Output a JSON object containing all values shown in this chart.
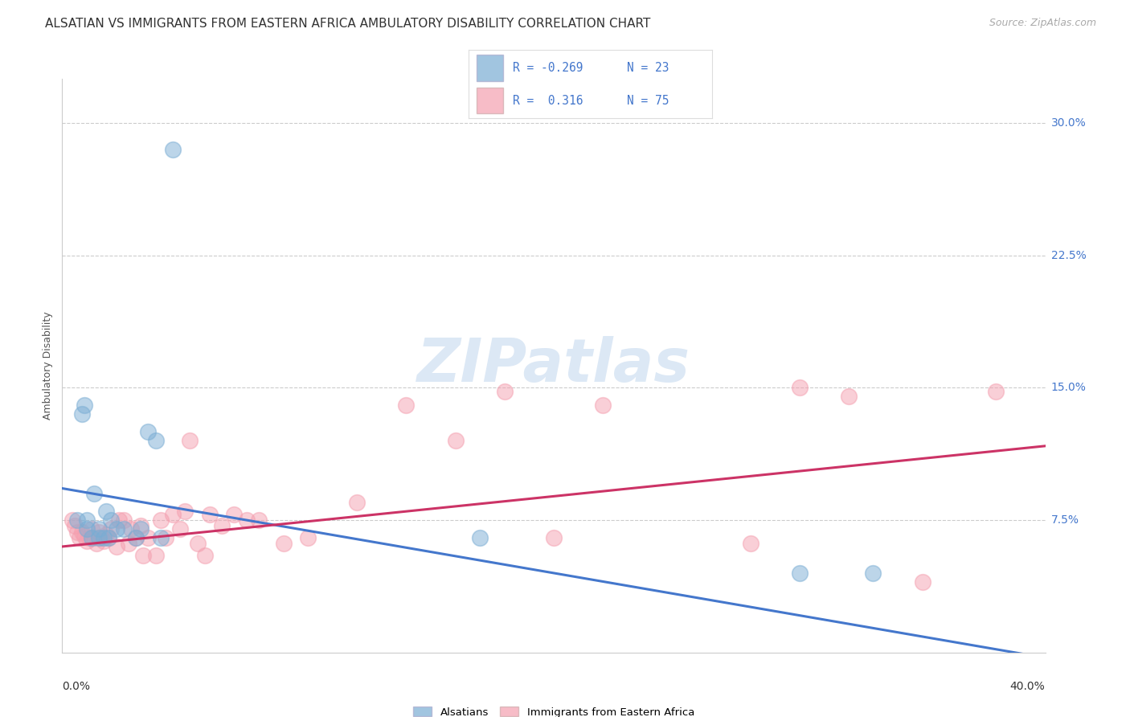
{
  "title": "ALSATIAN VS IMMIGRANTS FROM EASTERN AFRICA AMBULATORY DISABILITY CORRELATION CHART",
  "source": "Source: ZipAtlas.com",
  "ylabel": "Ambulatory Disability",
  "xlim": [
    0.0,
    0.4
  ],
  "ylim": [
    0.0,
    0.325
  ],
  "yticks": [
    0.075,
    0.15,
    0.225,
    0.3
  ],
  "ytick_labels": [
    "7.5%",
    "15.0%",
    "22.5%",
    "30.0%"
  ],
  "legend_label1": "Alsatians",
  "legend_label2": "Immigrants from Eastern Africa",
  "blue_color": "#7aadd4",
  "pink_color": "#f4a0b0",
  "blue_line_color": "#4477cc",
  "pink_line_color": "#cc3366",
  "tick_label_color": "#4477cc",
  "title_fontsize": 11,
  "source_fontsize": 9,
  "axis_label_fontsize": 9,
  "tick_fontsize": 10,
  "blue_scatter_x": [
    0.006,
    0.008,
    0.009,
    0.01,
    0.01,
    0.012,
    0.013,
    0.015,
    0.015,
    0.017,
    0.018,
    0.019,
    0.02,
    0.022,
    0.025,
    0.03,
    0.032,
    0.035,
    0.038,
    0.04,
    0.17,
    0.3,
    0.33
  ],
  "blue_scatter_y": [
    0.075,
    0.135,
    0.14,
    0.075,
    0.07,
    0.065,
    0.09,
    0.07,
    0.065,
    0.065,
    0.08,
    0.065,
    0.075,
    0.07,
    0.07,
    0.065,
    0.07,
    0.125,
    0.12,
    0.065,
    0.065,
    0.045,
    0.045
  ],
  "blue_outlier_x": [
    0.045
  ],
  "blue_outlier_y": [
    0.285
  ],
  "pink_scatter_x": [
    0.004,
    0.005,
    0.006,
    0.007,
    0.008,
    0.009,
    0.01,
    0.011,
    0.012,
    0.013,
    0.014,
    0.015,
    0.016,
    0.017,
    0.018,
    0.019,
    0.02,
    0.022,
    0.023,
    0.025,
    0.027,
    0.028,
    0.03,
    0.032,
    0.033,
    0.035,
    0.038,
    0.04,
    0.042,
    0.045,
    0.048,
    0.05,
    0.052,
    0.055,
    0.058,
    0.06,
    0.065,
    0.07,
    0.075,
    0.08,
    0.09,
    0.1,
    0.12,
    0.14,
    0.16,
    0.18,
    0.2,
    0.22,
    0.28,
    0.3,
    0.32,
    0.35,
    0.38
  ],
  "pink_scatter_y": [
    0.075,
    0.072,
    0.068,
    0.065,
    0.068,
    0.066,
    0.063,
    0.065,
    0.07,
    0.065,
    0.062,
    0.068,
    0.065,
    0.063,
    0.067,
    0.065,
    0.07,
    0.06,
    0.075,
    0.075,
    0.062,
    0.07,
    0.065,
    0.072,
    0.055,
    0.065,
    0.055,
    0.075,
    0.065,
    0.078,
    0.07,
    0.08,
    0.12,
    0.062,
    0.055,
    0.078,
    0.072,
    0.078,
    0.075,
    0.075,
    0.062,
    0.065,
    0.085,
    0.14,
    0.12,
    0.148,
    0.065,
    0.14,
    0.062,
    0.15,
    0.145,
    0.04,
    0.148
  ],
  "blue_line_x0": 0.0,
  "blue_line_x1": 0.4,
  "blue_line_y0": 0.093,
  "blue_line_y1": -0.003,
  "pink_line_x0": 0.0,
  "pink_line_x1": 0.4,
  "pink_line_y0": 0.06,
  "pink_line_y1": 0.117
}
